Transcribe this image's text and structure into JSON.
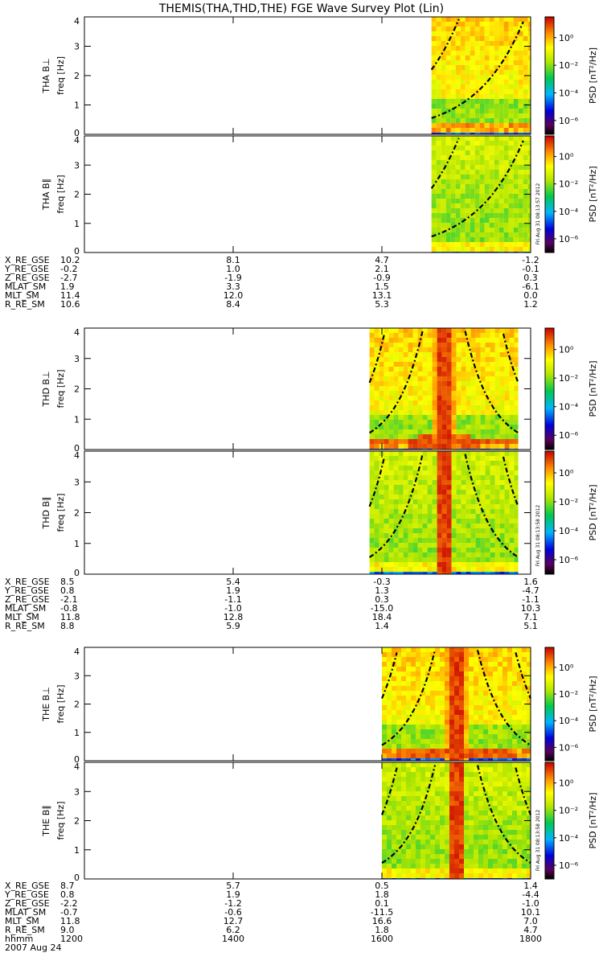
{
  "title": "THEMIS(THA,THD,THE) FGE Wave Survey Plot (Lin)",
  "footer": {
    "stamps": [
      "Fri Aug 31 08:13:57 2012",
      "Fri Aug 31 08:13:58 2012",
      "Fri Aug 31 08:13:58 2012"
    ]
  },
  "colorbar": {
    "label": "PSD [nT²/Hz]",
    "ticks": [
      "10⁰",
      "10⁻²",
      "10⁻⁴",
      "10⁻⁶"
    ]
  },
  "chart_data": {
    "type": "heatmap",
    "x_axis": {
      "label": "hhmm",
      "ticks": [
        "1200",
        "1400",
        "1600",
        "1800"
      ],
      "date": "2007 Aug 24",
      "xlim_hhmm": [
        1200,
        1800
      ]
    },
    "ylim_hz": [
      0,
      4
    ],
    "y_ticks": [
      "0",
      "1",
      "2",
      "3",
      "4"
    ],
    "colorbar_log_range": [
      -7,
      1.5
    ],
    "probes": [
      {
        "id": "THA",
        "panels": [
          {
            "label": "THA B⊥",
            "ylabel": "freq [Hz]"
          },
          {
            "label": "THA B∥",
            "ylabel": "freq [Hz]"
          }
        ],
        "data_start_hhmm": 1640,
        "data_end_hhmm": 1800,
        "spike_hhmm": null,
        "ephemeris": [
          {
            "name": "X_RE_GSE",
            "values": [
              "10.2",
              "8.1",
              "4.7",
              "-1.2"
            ]
          },
          {
            "name": "Y_RE_GSE",
            "values": [
              "-0.2",
              "1.0",
              "2.1",
              "-0.1"
            ]
          },
          {
            "name": "Z_RE_GSE",
            "values": [
              "-2.7",
              "-1.9",
              "-0.9",
              "0.3"
            ]
          },
          {
            "name": "MLAT_SM",
            "values": [
              "1.9",
              "3.3",
              "1.5",
              "-6.1"
            ]
          },
          {
            "name": "MLT_SM",
            "values": [
              "11.4",
              "12.0",
              "13.1",
              "0.0"
            ]
          },
          {
            "name": "R_RE_SM",
            "values": [
              "10.6",
              "8.4",
              "5.3",
              "1.2"
            ]
          }
        ]
      },
      {
        "id": "THD",
        "panels": [
          {
            "label": "THD B⊥",
            "ylabel": "freq [Hz]"
          },
          {
            "label": "THD B∥",
            "ylabel": "freq [Hz]"
          }
        ],
        "data_start_hhmm": 1550,
        "data_end_hhmm": 1750,
        "spike_hhmm": 1650,
        "ephemeris": [
          {
            "name": "X_RE_GSE",
            "values": [
              "8.5",
              "5.4",
              "-0.3",
              "1.6"
            ]
          },
          {
            "name": "Y_RE_GSE",
            "values": [
              "0.8",
              "1.9",
              "1.3",
              "-4.7"
            ]
          },
          {
            "name": "Z_RE_GSE",
            "values": [
              "-2.1",
              "-1.1",
              "0.3",
              "-1.1"
            ]
          },
          {
            "name": "MLAT_SM",
            "values": [
              "-0.8",
              "-1.0",
              "-15.0",
              "10.3"
            ]
          },
          {
            "name": "MLT_SM",
            "values": [
              "11.8",
              "12.8",
              "18.4",
              "7.1"
            ]
          },
          {
            "name": "R_RE_SM",
            "values": [
              "8.8",
              "5.9",
              "1.4",
              "5.1"
            ]
          }
        ]
      },
      {
        "id": "THE",
        "panels": [
          {
            "label": "THE B⊥",
            "ylabel": "freq [Hz]"
          },
          {
            "label": "THE B∥",
            "ylabel": "freq [Hz]"
          }
        ],
        "data_start_hhmm": 1600,
        "data_end_hhmm": 1800,
        "spike_hhmm": 1700,
        "ephemeris": [
          {
            "name": "X_RE_GSE",
            "values": [
              "8.7",
              "5.7",
              "0.5",
              "1.4"
            ]
          },
          {
            "name": "Y_RE_GSE",
            "values": [
              "0.8",
              "1.9",
              "1.8",
              "-4.4"
            ]
          },
          {
            "name": "Z_RE_GSE",
            "values": [
              "-2.2",
              "-1.2",
              "0.1",
              "-1.0"
            ]
          },
          {
            "name": "MLAT_SM",
            "values": [
              "-0.7",
              "-0.6",
              "-11.5",
              "10.1"
            ]
          },
          {
            "name": "MLT_SM",
            "values": [
              "11.8",
              "12.7",
              "16.6",
              "7.0"
            ]
          },
          {
            "name": "R_RE_SM",
            "values": [
              "9.0",
              "6.2",
              "1.8",
              "4.7"
            ]
          }
        ]
      }
    ]
  }
}
